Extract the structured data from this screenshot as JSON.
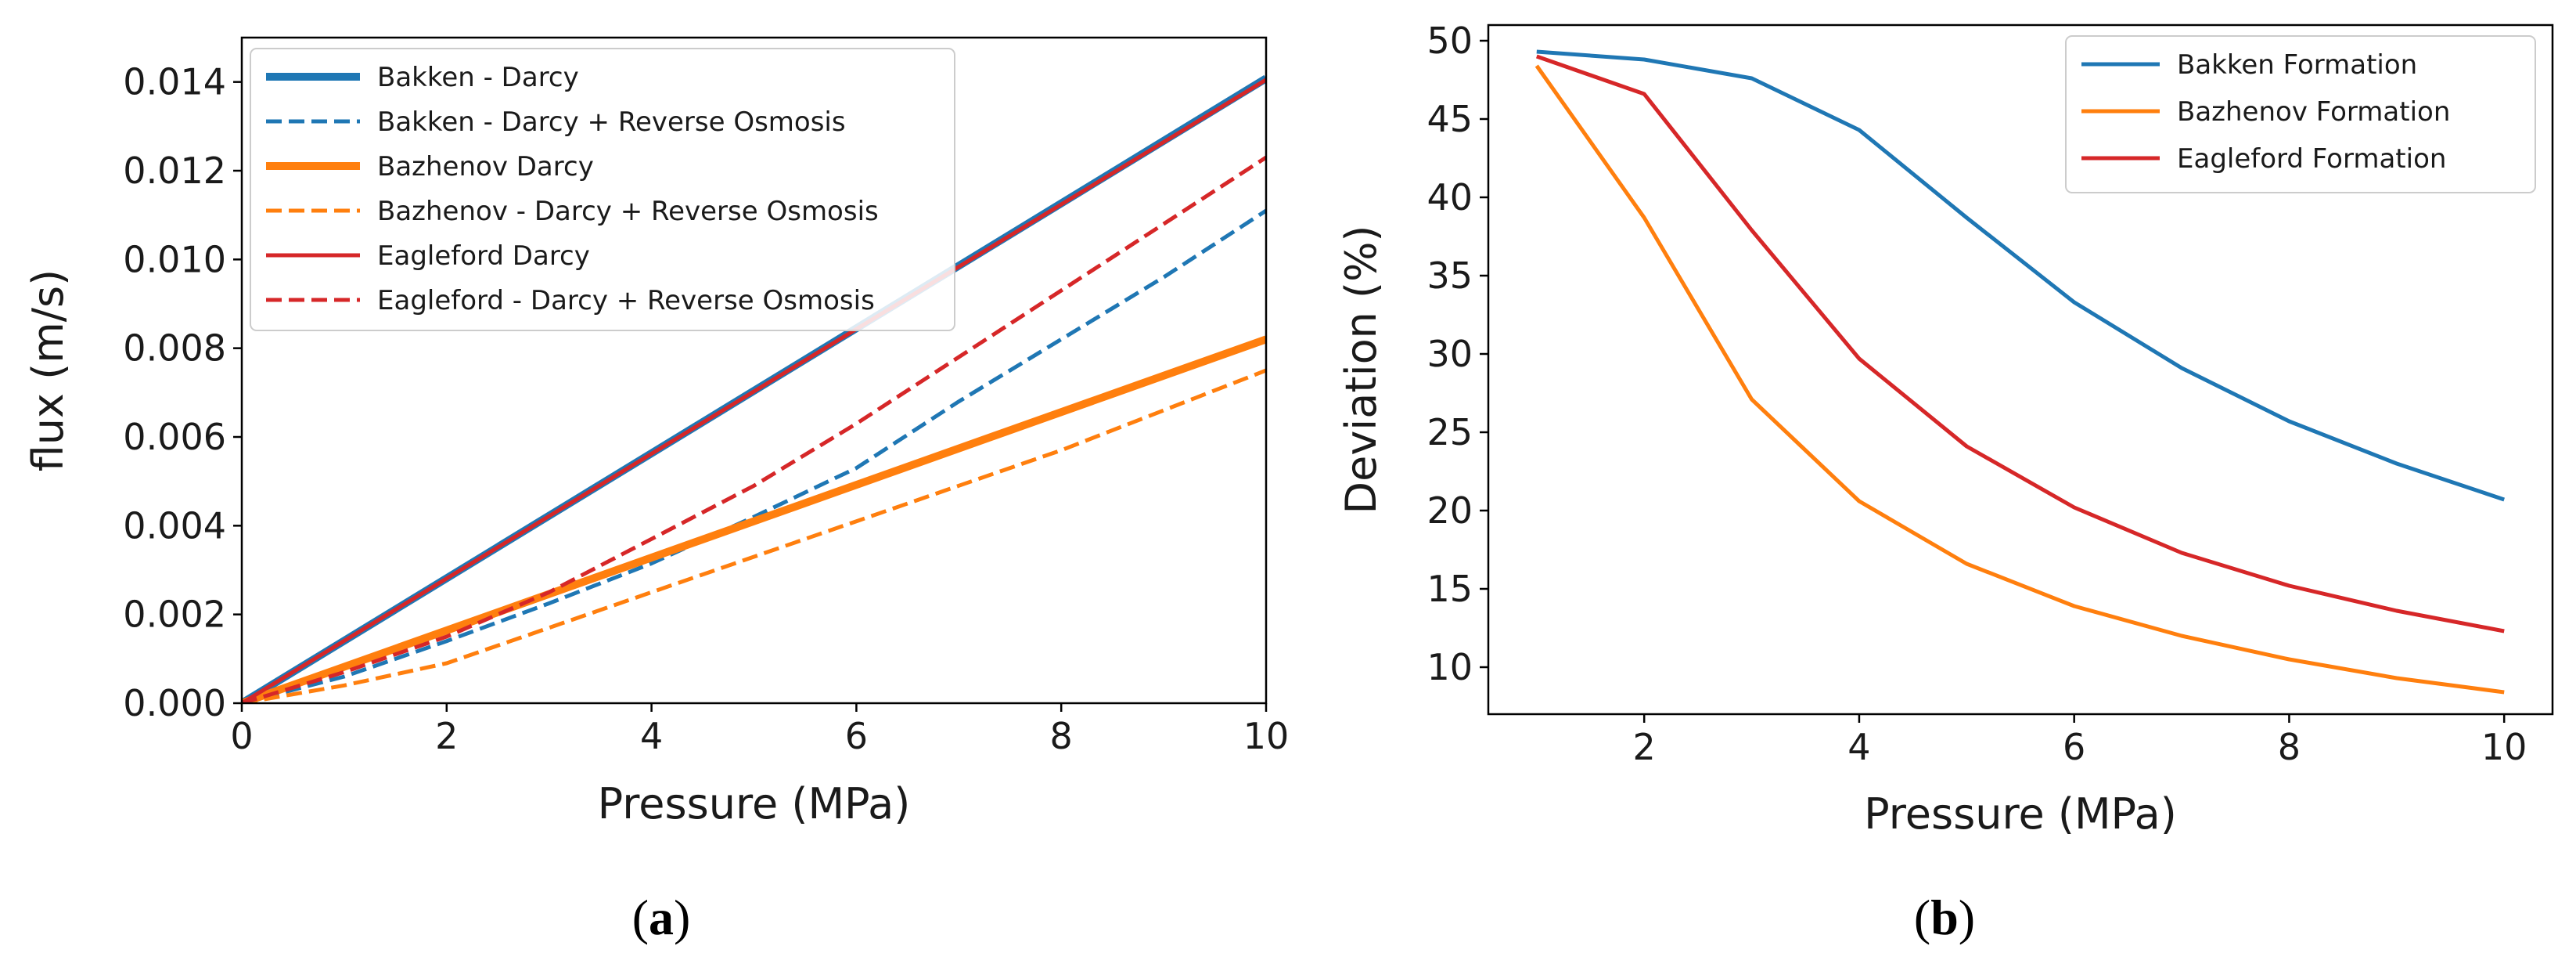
{
  "panels": {
    "a_letter": "a",
    "b_letter": "b"
  },
  "chart_data": [
    {
      "type": "line",
      "panel": "a",
      "title": "",
      "xlabel": "Pressure (MPa)",
      "ylabel": "flux (m/s)",
      "xlim": [
        0,
        10
      ],
      "ylim": [
        0,
        0.015
      ],
      "xticks": [
        0,
        2,
        4,
        6,
        8,
        10
      ],
      "xtick_labels": [
        "0",
        "2",
        "4",
        "6",
        "8",
        "10"
      ],
      "yticks": [
        0,
        0.002,
        0.004,
        0.006,
        0.008,
        0.01,
        0.012,
        0.014
      ],
      "ytick_labels": [
        "0.000",
        "0.002",
        "0.004",
        "0.006",
        "0.008",
        "0.010",
        "0.012",
        "0.014"
      ],
      "legend_position": "upper-left",
      "series": [
        {
          "name": "Bakken - Darcy",
          "color": "#1f77b4",
          "style": "solid",
          "weight": "thick",
          "x": [
            0,
            10
          ],
          "y": [
            0,
            0.01408
          ]
        },
        {
          "name": "Bakken - Darcy + Reverse Osmosis",
          "color": "#1f77b4",
          "style": "dashed",
          "weight": "normal",
          "x": [
            0,
            1,
            2,
            3,
            4,
            5,
            6,
            7,
            8,
            9,
            10
          ],
          "y": [
            0,
            0.0006,
            0.0014,
            0.00225,
            0.00315,
            0.0042,
            0.0053,
            0.0068,
            0.0082,
            0.0096,
            0.0111
          ]
        },
        {
          "name": "Bazhenov Darcy",
          "color": "#ff7f0e",
          "style": "solid",
          "weight": "thick",
          "x": [
            0,
            10
          ],
          "y": [
            0,
            0.0082
          ]
        },
        {
          "name": "Bazhenov - Darcy + Reverse Osmosis",
          "color": "#ff7f0e",
          "style": "dashed",
          "weight": "normal",
          "x": [
            0,
            1,
            2,
            3,
            4,
            5,
            6,
            7,
            8,
            9,
            10
          ],
          "y": [
            0,
            0.0004,
            0.0009,
            0.0017,
            0.0025,
            0.0033,
            0.0041,
            0.0049,
            0.0057,
            0.0066,
            0.0075
          ]
        },
        {
          "name": "Eagleford Darcy",
          "color": "#d62728",
          "style": "solid",
          "weight": "normal",
          "x": [
            0,
            10
          ],
          "y": [
            0,
            0.01405
          ]
        },
        {
          "name": "Eagleford - Darcy + Reverse Osmosis",
          "color": "#d62728",
          "style": "dashed",
          "weight": "normal",
          "x": [
            0,
            1,
            2,
            3,
            4,
            5,
            6,
            7,
            8,
            9,
            10
          ],
          "y": [
            0,
            0.0007,
            0.0015,
            0.0025,
            0.0037,
            0.0049,
            0.0063,
            0.0078,
            0.0093,
            0.0108,
            0.0123
          ]
        }
      ]
    },
    {
      "type": "line",
      "panel": "b",
      "title": "",
      "xlabel": "Pressure (MPa)",
      "ylabel": "Deviation (%)",
      "xlim": [
        0.55,
        10.45
      ],
      "ylim": [
        7,
        51
      ],
      "xticks": [
        2,
        4,
        6,
        8,
        10
      ],
      "xtick_labels": [
        "2",
        "4",
        "6",
        "8",
        "10"
      ],
      "yticks": [
        10,
        15,
        20,
        25,
        30,
        35,
        40,
        45,
        50
      ],
      "ytick_labels": [
        "10",
        "15",
        "20",
        "25",
        "30",
        "35",
        "40",
        "45",
        "50"
      ],
      "legend_position": "upper-right",
      "series": [
        {
          "name": "Bakken Formation",
          "color": "#1f77b4",
          "x": [
            1,
            2,
            3,
            4,
            5,
            6,
            7,
            8,
            9,
            10
          ],
          "y": [
            49.3,
            48.8,
            47.6,
            44.3,
            38.7,
            33.3,
            29.1,
            25.7,
            23.0,
            20.7
          ]
        },
        {
          "name": "Bazhenov Formation",
          "color": "#ff7f0e",
          "x": [
            1,
            2,
            3,
            4,
            5,
            6,
            7,
            8,
            9,
            10
          ],
          "y": [
            48.4,
            38.7,
            27.1,
            20.6,
            16.6,
            13.9,
            12.0,
            10.5,
            9.3,
            8.4
          ]
        },
        {
          "name": "Eagleford Formation",
          "color": "#d62728",
          "x": [
            1,
            2,
            3,
            4,
            5,
            6,
            7,
            8,
            9,
            10
          ],
          "y": [
            49.0,
            46.6,
            37.9,
            29.7,
            24.1,
            20.2,
            17.3,
            15.2,
            13.6,
            12.3
          ]
        }
      ]
    }
  ]
}
